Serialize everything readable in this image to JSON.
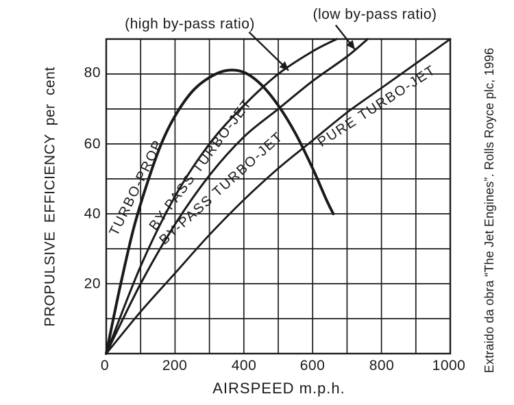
{
  "page": {
    "background": "#ffffff",
    "ink_color": "#1a1a1a"
  },
  "caption_right": "Extraido da obra “The Jet Engines”. Rolls Royce plc, 1996",
  "chart_data": {
    "type": "line",
    "title": "",
    "xlabel": "AIRSPEED m.p.h.",
    "ylabel": "PROPULSIVE EFFICIENCY per cent",
    "xlim": [
      0,
      1000
    ],
    "ylim": [
      0,
      90
    ],
    "x_ticks": [
      0,
      200,
      400,
      600,
      800,
      1000
    ],
    "y_ticks": [
      20,
      40,
      60,
      80
    ],
    "grid": {
      "on": true,
      "x_step_mph": 100,
      "y_step_percent": 10
    },
    "legend_position": "labels-on-curves",
    "series": [
      {
        "name": "TURBO-PROP",
        "points": [
          [
            0,
            0
          ],
          [
            40,
            19
          ],
          [
            80,
            36
          ],
          [
            120,
            49
          ],
          [
            160,
            60
          ],
          [
            200,
            68
          ],
          [
            250,
            75
          ],
          [
            300,
            79
          ],
          [
            350,
            81
          ],
          [
            400,
            80.5
          ],
          [
            450,
            77
          ],
          [
            500,
            71
          ],
          [
            550,
            63
          ],
          [
            600,
            53
          ],
          [
            640,
            44
          ],
          [
            660,
            40
          ]
        ]
      },
      {
        "name": "BY-PASS TURBO-JET (high by-pass ratio)",
        "points": [
          [
            0,
            0
          ],
          [
            100,
            25
          ],
          [
            200,
            45
          ],
          [
            300,
            60
          ],
          [
            400,
            71
          ],
          [
            500,
            80
          ],
          [
            600,
            86.5
          ],
          [
            670,
            90
          ]
        ]
      },
      {
        "name": "BY-PASS TURBO-JET (low by-pass ratio)",
        "points": [
          [
            0,
            0
          ],
          [
            100,
            20
          ],
          [
            200,
            37
          ],
          [
            300,
            51
          ],
          [
            400,
            62
          ],
          [
            500,
            70
          ],
          [
            600,
            78
          ],
          [
            700,
            85
          ],
          [
            760,
            90
          ]
        ]
      },
      {
        "name": "PURE TURBO-JET",
        "points": [
          [
            0,
            0
          ],
          [
            100,
            12
          ],
          [
            200,
            23
          ],
          [
            300,
            34
          ],
          [
            400,
            44
          ],
          [
            500,
            53
          ],
          [
            600,
            61
          ],
          [
            700,
            69
          ],
          [
            800,
            76
          ],
          [
            900,
            83
          ],
          [
            1000,
            90
          ]
        ]
      }
    ],
    "curve_labels": [
      "TURBO-PROP",
      "BY-PASS TURBO-JET",
      "BY-PASS TURBO-JET",
      "PURE TURBO-JET"
    ],
    "annotations": [
      {
        "text": "(high by-pass ratio)",
        "arrow_from_xy": [
          415,
          92
        ],
        "arrow_to_xy": [
          530,
          81
        ]
      },
      {
        "text": "(low by-pass ratio)",
        "arrow_from_xy": [
          667,
          94
        ],
        "arrow_to_xy": [
          723,
          87
        ]
      }
    ]
  }
}
